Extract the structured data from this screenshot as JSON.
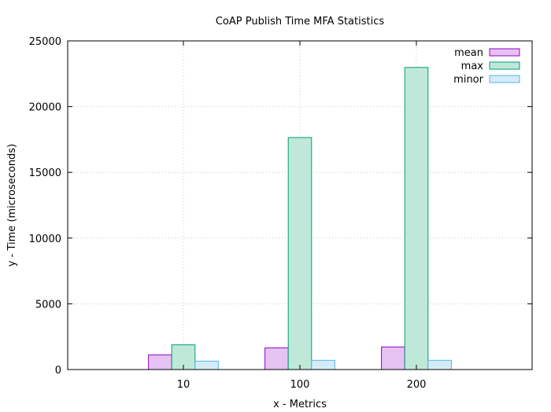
{
  "chart_data": {
    "type": "bar",
    "title": "CoAP Publish Time MFA Statistics",
    "xlabel": "x - Metrics",
    "ylabel": "y - Time (microseconds)",
    "categories": [
      "10",
      "100",
      "200"
    ],
    "ylim": [
      0,
      25000
    ],
    "yticks": [
      0,
      5000,
      10000,
      15000,
      20000,
      25000
    ],
    "grid": true,
    "legend_position": "top-right",
    "series": [
      {
        "name": "mean",
        "values": [
          1120,
          1650,
          1720
        ],
        "fill": "#e5c2f2",
        "stroke": "#9400d3"
      },
      {
        "name": "max",
        "values": [
          1880,
          17650,
          22980
        ],
        "fill": "#bfe8d9",
        "stroke": "#009e73"
      },
      {
        "name": "minor",
        "values": [
          640,
          700,
          700
        ],
        "fill": "#d4ecf8",
        "stroke": "#56b4e9"
      }
    ]
  }
}
